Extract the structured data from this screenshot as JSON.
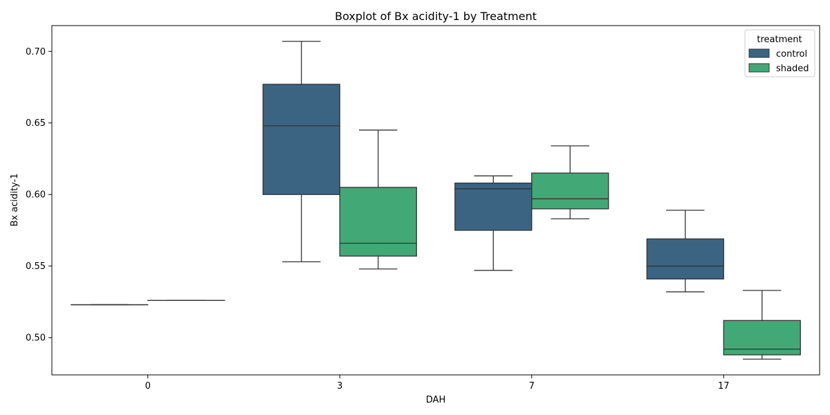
{
  "chart_data": {
    "type": "boxplot",
    "title": "Boxplot of Bx acidity-1 by Treatment",
    "xlabel": "DAH",
    "ylabel": "Bx acidity-1",
    "categories": [
      "0",
      "3",
      "7",
      "17"
    ],
    "ylim": [
      0.474,
      0.718
    ],
    "yticks": [
      0.5,
      0.55,
      0.6,
      0.65,
      0.7
    ],
    "ytick_labels": [
      "0.50",
      "0.55",
      "0.60",
      "0.65",
      "0.70"
    ],
    "grid": false,
    "legend": {
      "title": "treatment",
      "placement": "top-right"
    },
    "series": [
      {
        "name": "control",
        "color": "#3b6483",
        "boxes": [
          {
            "category": "0",
            "min": 0.523,
            "q1": 0.523,
            "median": 0.523,
            "q3": 0.523,
            "max": 0.523
          },
          {
            "category": "3",
            "min": 0.553,
            "q1": 0.6,
            "median": 0.648,
            "q3": 0.677,
            "max": 0.707
          },
          {
            "category": "7",
            "min": 0.547,
            "q1": 0.575,
            "median": 0.604,
            "q3": 0.608,
            "max": 0.613
          },
          {
            "category": "17",
            "min": 0.532,
            "q1": 0.541,
            "median": 0.55,
            "q3": 0.569,
            "max": 0.589
          }
        ]
      },
      {
        "name": "shaded",
        "color": "#42a875",
        "boxes": [
          {
            "category": "0",
            "min": 0.526,
            "q1": 0.526,
            "median": 0.526,
            "q3": 0.526,
            "max": 0.526
          },
          {
            "category": "3",
            "min": 0.548,
            "q1": 0.557,
            "median": 0.566,
            "q3": 0.605,
            "max": 0.645
          },
          {
            "category": "7",
            "min": 0.583,
            "q1": 0.59,
            "median": 0.597,
            "q3": 0.615,
            "max": 0.634
          },
          {
            "category": "17",
            "min": 0.485,
            "q1": 0.488,
            "median": 0.492,
            "q3": 0.512,
            "max": 0.533
          }
        ]
      }
    ]
  }
}
